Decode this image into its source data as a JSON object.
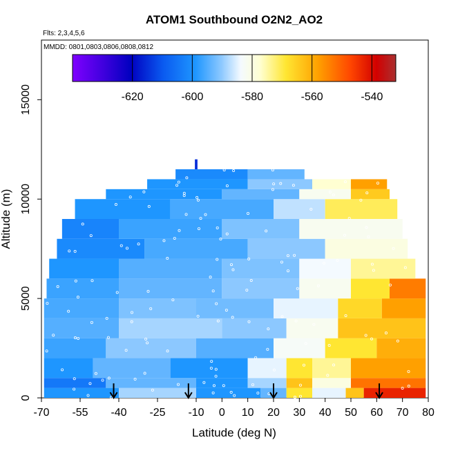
{
  "chart_data": {
    "type": "heatmap",
    "title": "ATOM1 Southbound O2N2_AO2",
    "subtitle_flights": "Flts: 2,3,4,5,6",
    "subtitle_dates": "MMDD: 0801,0803,0806,0808,0812",
    "xlabel": "Latitude (deg N)",
    "ylabel": "Altitude (m)",
    "xlim": [
      -70,
      80
    ],
    "ylim": [
      0,
      18000
    ],
    "x_tick_values": [
      -70,
      -55,
      -40,
      -25,
      -10,
      0,
      10,
      20,
      30,
      40,
      50,
      60,
      70,
      80
    ],
    "x_tick_labels": [
      "-70",
      "-55",
      "-40",
      "-25",
      "-10",
      "0",
      "10",
      "20",
      "30",
      "40",
      "50",
      "60",
      "70",
      "80"
    ],
    "y_tick_values": [
      0,
      5000,
      10000,
      15000
    ],
    "y_tick_labels": [
      "0",
      "5000",
      "10000",
      "15000"
    ],
    "colorbar": {
      "range": [
        -640,
        -532
      ],
      "tick_values": [
        -620,
        -600,
        -580,
        -560,
        -540
      ],
      "tick_labels": [
        "-620",
        "-600",
        "-580",
        "-560",
        "-540"
      ],
      "colors": [
        "#7f00ff",
        "#0000c8",
        "#0a64f0",
        "#1e96ff",
        "#8cc8ff",
        "#f0f8ff",
        "#ffffe0",
        "#ffe632",
        "#ffa000",
        "#ff5000",
        "#dc0000",
        "#b42828"
      ]
    },
    "arrow_latitudes": [
      -42,
      -13,
      20,
      61
    ],
    "approx_field_notes": "Values are approximate bands read from the color field.",
    "bands": [
      {
        "alt": [
          0,
          500
        ],
        "lat": [
          -69,
          79
        ],
        "segments": [
          [
            -69,
            -40,
            -600
          ],
          [
            -40,
            -10,
            -590
          ],
          [
            -10,
            15,
            -600
          ],
          [
            15,
            25,
            -595
          ],
          [
            25,
            35,
            -570
          ],
          [
            35,
            48,
            -585
          ],
          [
            48,
            55,
            -565
          ],
          [
            55,
            79,
            -545
          ]
        ]
      },
      {
        "alt": [
          500,
          1000
        ],
        "lat": [
          -69,
          79
        ],
        "segments": [
          [
            -69,
            -45,
            -605
          ],
          [
            -45,
            -10,
            -595
          ],
          [
            -10,
            10,
            -600
          ],
          [
            10,
            25,
            -590
          ],
          [
            25,
            35,
            -565
          ],
          [
            35,
            50,
            -580
          ],
          [
            50,
            79,
            -555
          ]
        ]
      },
      {
        "alt": [
          1000,
          2000
        ],
        "lat": [
          -69,
          79
        ],
        "segments": [
          [
            -69,
            -50,
            -600
          ],
          [
            -50,
            -20,
            -595
          ],
          [
            -20,
            10,
            -600
          ],
          [
            10,
            25,
            -585
          ],
          [
            25,
            35,
            -570
          ],
          [
            35,
            50,
            -575
          ],
          [
            50,
            79,
            -560
          ]
        ]
      },
      {
        "alt": [
          2000,
          3000
        ],
        "lat": [
          -69,
          79
        ],
        "segments": [
          [
            -69,
            -45,
            -598
          ],
          [
            -45,
            -10,
            -592
          ],
          [
            -10,
            20,
            -596
          ],
          [
            20,
            40,
            -583
          ],
          [
            40,
            60,
            -570
          ],
          [
            60,
            79,
            -562
          ]
        ]
      },
      {
        "alt": [
          3000,
          4000
        ],
        "lat": [
          -69,
          79
        ],
        "segments": [
          [
            -69,
            -40,
            -596
          ],
          [
            -40,
            0,
            -590
          ],
          [
            0,
            25,
            -592
          ],
          [
            25,
            45,
            -582
          ],
          [
            45,
            79,
            -565
          ]
        ]
      },
      {
        "alt": [
          4000,
          5000
        ],
        "lat": [
          -69,
          79
        ],
        "segments": [
          [
            -69,
            -40,
            -597
          ],
          [
            -40,
            -10,
            -593
          ],
          [
            -10,
            20,
            -594
          ],
          [
            20,
            45,
            -585
          ],
          [
            45,
            62,
            -568
          ],
          [
            62,
            79,
            -560
          ]
        ]
      },
      {
        "alt": [
          5000,
          6000
        ],
        "lat": [
          -68,
          79
        ],
        "segments": [
          [
            -68,
            -40,
            -598
          ],
          [
            -40,
            0,
            -595
          ],
          [
            0,
            30,
            -592
          ],
          [
            30,
            50,
            -582
          ],
          [
            50,
            65,
            -570
          ],
          [
            65,
            79,
            -556
          ]
        ]
      },
      {
        "alt": [
          6000,
          7000
        ],
        "lat": [
          -67,
          75
        ],
        "segments": [
          [
            -67,
            -40,
            -600
          ],
          [
            -40,
            0,
            -596
          ],
          [
            0,
            30,
            -593
          ],
          [
            30,
            50,
            -584
          ],
          [
            50,
            75,
            -575
          ]
        ]
      },
      {
        "alt": [
          7000,
          8000
        ],
        "lat": [
          -64,
          72
        ],
        "segments": [
          [
            -64,
            -30,
            -602
          ],
          [
            -30,
            10,
            -597
          ],
          [
            10,
            40,
            -592
          ],
          [
            40,
            72,
            -580
          ]
        ]
      },
      {
        "alt": [
          8000,
          9000
        ],
        "lat": [
          -62,
          70
        ],
        "segments": [
          [
            -62,
            -40,
            -603
          ],
          [
            -40,
            0,
            -598
          ],
          [
            0,
            30,
            -593
          ],
          [
            30,
            70,
            -582
          ]
        ]
      },
      {
        "alt": [
          9000,
          10000
        ],
        "lat": [
          -57,
          68
        ],
        "segments": [
          [
            -57,
            -20,
            -600
          ],
          [
            -20,
            20,
            -597
          ],
          [
            20,
            40,
            -588
          ],
          [
            40,
            68,
            -572
          ]
        ]
      },
      {
        "alt": [
          10000,
          10500
        ],
        "lat": [
          -45,
          65
        ],
        "segments": [
          [
            -45,
            0,
            -600
          ],
          [
            0,
            30,
            -595
          ],
          [
            30,
            50,
            -582
          ],
          [
            50,
            65,
            -566
          ]
        ]
      },
      {
        "alt": [
          10500,
          11000
        ],
        "lat": [
          -29,
          64
        ],
        "segments": [
          [
            -29,
            10,
            -600
          ],
          [
            10,
            35,
            -592
          ],
          [
            35,
            50,
            -578
          ],
          [
            50,
            64,
            -560
          ]
        ]
      },
      {
        "alt": [
          11000,
          11500
        ],
        "lat": [
          -18,
          32
        ],
        "segments": [
          [
            -18,
            10,
            -602
          ],
          [
            10,
            32,
            -595
          ]
        ]
      },
      {
        "alt": [
          11500,
          12000
        ],
        "lat": [
          -10.5,
          -9.5
        ],
        "segments": [
          [
            -10.5,
            -9.5,
            -615
          ]
        ]
      }
    ]
  }
}
